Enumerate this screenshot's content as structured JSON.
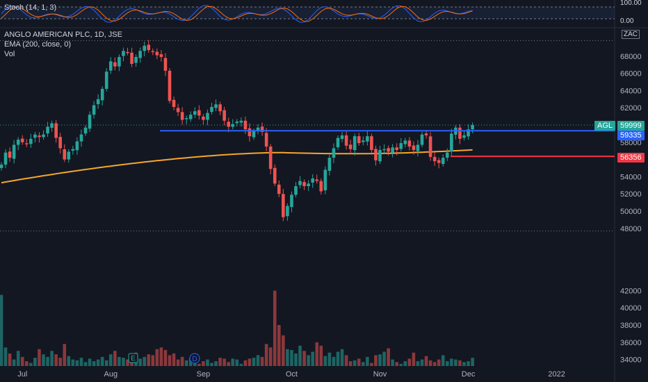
{
  "stoch": {
    "label": "Stoch (14, 1, 3)",
    "ticks": [
      "100.00",
      "0.00"
    ]
  },
  "header": {
    "title": "ANGLO AMERICAN PLC, 1D, JSE",
    "ema": "EMA (200, close, 0)",
    "vol": "Vol",
    "currency": "ZAC"
  },
  "tags": {
    "symbol": "AGL",
    "last": "59999",
    "blue": "59335",
    "red": "56356"
  },
  "colors": {
    "up": "#26a69a",
    "down": "#ef5350",
    "ema": "#f7a62c",
    "blue_line": "#2962ff",
    "red_line": "#f23645",
    "bg": "#131722"
  },
  "markers": {
    "earnings": "E",
    "dividend": "D"
  },
  "chart_data": {
    "type": "candlestick",
    "title": "ANGLO AMERICAN PLC, 1D, JSE",
    "ylim": [
      47000,
      70000
    ],
    "y_ticks": [
      48000,
      50000,
      52000,
      54000,
      56000,
      58000,
      60000,
      62000,
      64000,
      66000,
      68000
    ],
    "vol_ticks": [
      34000,
      36000,
      38000,
      40000,
      42000
    ],
    "x_ticks": [
      {
        "label": "Jul",
        "idx": 5
      },
      {
        "label": "Aug",
        "idx": 26
      },
      {
        "label": "Sep",
        "idx": 48
      },
      {
        "label": "Oct",
        "idx": 69
      },
      {
        "label": "Nov",
        "idx": 90
      },
      {
        "label": "Dec",
        "idx": 111
      },
      {
        "label": "2022",
        "idx": 132
      }
    ],
    "levels": [
      59335,
      56356
    ],
    "last_price": 59999,
    "close": [
      55400,
      56800,
      56200,
      57700,
      58300,
      58000,
      57800,
      58400,
      58900,
      58600,
      58900,
      59800,
      60200,
      58500,
      57300,
      56000,
      56900,
      57200,
      58100,
      58900,
      59700,
      61200,
      62300,
      63000,
      64200,
      66200,
      67400,
      66800,
      67900,
      68600,
      68400,
      67100,
      67900,
      68600,
      69200,
      68700,
      68500,
      68100,
      67900,
      66300,
      62800,
      62100,
      61500,
      60600,
      60800,
      61200,
      61600,
      61100,
      60600,
      61400,
      62100,
      62400,
      61600,
      60500,
      59800,
      60100,
      60400,
      60500,
      59500,
      58700,
      59300,
      59700,
      59200,
      57500,
      54900,
      53200,
      52000,
      49300,
      50600,
      51900,
      52900,
      53500,
      52900,
      53200,
      53800,
      53500,
      52300,
      54800,
      56200,
      57300,
      58500,
      58800,
      57600,
      57200,
      58700,
      57900,
      58200,
      58700,
      57100,
      55900,
      57100,
      57200,
      56900,
      57400,
      57100,
      57900,
      58200,
      57500,
      57100,
      57700,
      58900,
      58800,
      56300,
      55800,
      55600,
      56200,
      56800,
      59000,
      59700,
      58400,
      58800,
      59500,
      59999
    ],
    "volume": [
      41500,
      35400,
      34700,
      34000,
      35000,
      34300,
      33800,
      33600,
      34200,
      35200,
      34600,
      34300,
      35000,
      34600,
      34200,
      35800,
      34400,
      34000,
      33900,
      34200,
      33700,
      34100,
      33800,
      34000,
      34300,
      33900,
      34600,
      35000,
      34300,
      34200,
      34000,
      34500,
      34800,
      34100,
      34300,
      34600,
      34500,
      35200,
      35400,
      35100,
      34500,
      34700,
      34000,
      34300,
      33900,
      34200,
      33700,
      33500,
      33800,
      34000,
      33600,
      33800,
      34200,
      34100,
      33700,
      34100,
      34000,
      33500,
      33900,
      34100,
      34200,
      34500,
      34300,
      35800,
      35400,
      42000,
      38000,
      36800,
      35200,
      35100,
      34700,
      35600,
      35000,
      34500,
      34900,
      36000,
      35600,
      34400,
      34800,
      34300,
      34900,
      35200,
      34500,
      33800,
      33900,
      34100,
      33700,
      34300,
      33600,
      34500,
      34600,
      34900,
      35300,
      34000,
      33700,
      33500,
      33800,
      34100,
      34800,
      33800,
      34000,
      34400,
      33900,
      33700,
      34000,
      34500,
      33800,
      34100,
      34000,
      33900,
      33700,
      33800,
      34200
    ]
  }
}
